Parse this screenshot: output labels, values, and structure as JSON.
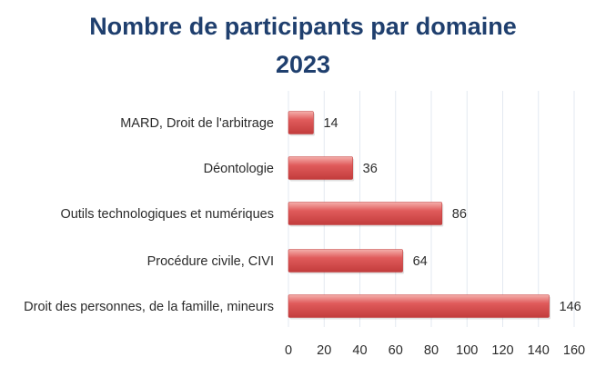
{
  "chart_data": {
    "type": "bar",
    "orientation": "horizontal",
    "title": "Nombre de participants par domaine",
    "subtitle": "2023",
    "categories": [
      "MARD, Droit de l'arbitrage",
      "Déontologie",
      "Outils technologiques et numériques",
      "Procédure civile, CIVI",
      "Droit des personnes, de la famille, mineurs"
    ],
    "values": [
      14,
      36,
      86,
      64,
      146
    ],
    "xlim": [
      0,
      160
    ],
    "xticks": [
      0,
      20,
      40,
      60,
      80,
      100,
      120,
      140,
      160
    ],
    "grid": true,
    "legend": "none",
    "colors": {
      "title": "#1f3f6e",
      "bar": "#e05b5b",
      "bar_light": "#f4b0ac",
      "bar_dark": "#c23c3c",
      "grid": "#e3e9f1"
    }
  }
}
